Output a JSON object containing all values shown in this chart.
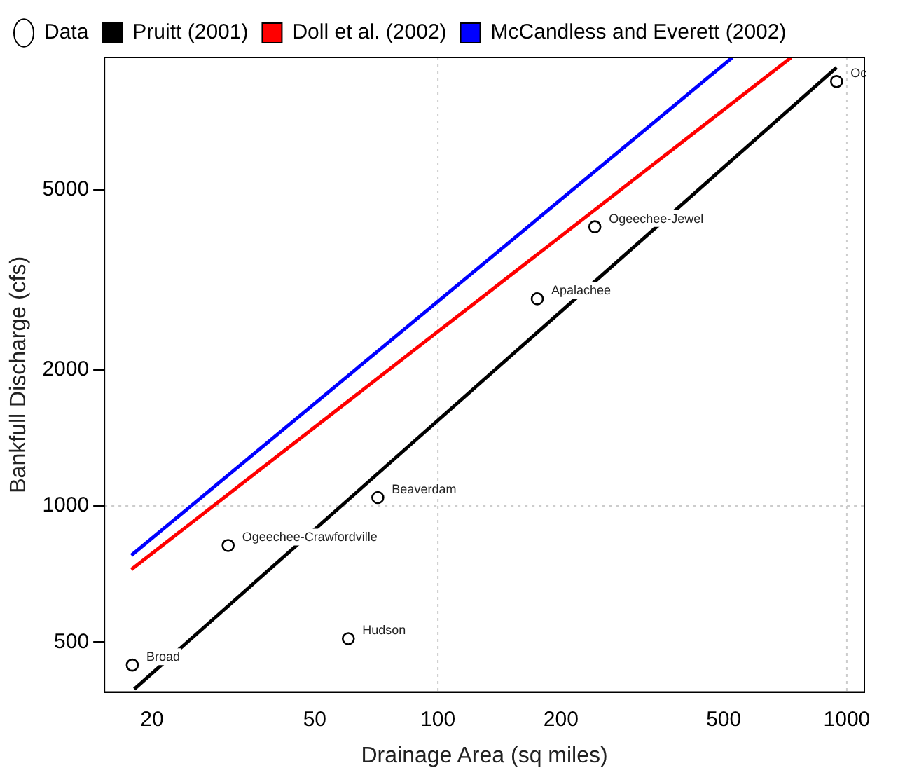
{
  "chart_data": {
    "type": "scatter",
    "xlabel": "Drainage Area (sq miles)",
    "ylabel": "Bankfull Discharge (cfs)",
    "log": "xy",
    "xlim": [
      15.3,
      1104
    ],
    "ylim": [
      388,
      9800
    ],
    "xticks": [
      20,
      50,
      100,
      200,
      500,
      1000
    ],
    "yticks": [
      500,
      1000,
      2000,
      5000
    ],
    "legend": "top left",
    "grid": false,
    "series": [
      {
        "name": "Data",
        "marker": "circle",
        "color": "#000000",
        "x": [
          17.9,
          30.7,
          60.4,
          71.3,
          175,
          242,
          944
        ],
        "values": [
          445,
          818,
          509,
          1044,
          2870,
          4140,
          8670
        ]
      },
      {
        "name": "Pruitt (2001)",
        "type": "line",
        "color": "#000000",
        "x": [
          18.1,
          944
        ],
        "values": [
          394,
          9310
        ]
      },
      {
        "name": "Doll et al. (2002)",
        "type": "line",
        "color": "#ff0000",
        "x": [
          17.8,
          731
        ],
        "values": [
          724,
          9800
        ]
      },
      {
        "name": "McCandless and Everett (2002)",
        "type": "line",
        "color": "#0000ff",
        "x": [
          17.8,
          525
        ],
        "values": [
          778,
          9800
        ]
      }
    ],
    "ref_lines": [
      {
        "axis": "x",
        "value": 100,
        "color": "#cccccc",
        "line_style": "dotted"
      },
      {
        "axis": "x",
        "value": 1000,
        "color": "#cccccc",
        "line_style": "dotted"
      },
      {
        "axis": "y",
        "value": 1000,
        "color": "#cccccc",
        "line_style": "dotted"
      }
    ],
    "annotations": [
      {
        "text": "Broad",
        "x": 17.9,
        "y": 445
      },
      {
        "text": "Ogeechee-Crawfordville",
        "x": 30.7,
        "y": 818
      },
      {
        "text": "Hudson",
        "x": 60.4,
        "y": 509
      },
      {
        "text": "Beaverdam",
        "x": 71.3,
        "y": 1044
      },
      {
        "text": "Apalachee",
        "x": 175,
        "y": 2870
      },
      {
        "text": "Ogeechee-Jewel",
        "x": 242,
        "y": 4140
      },
      {
        "text": "Oc",
        "x": 944,
        "y": 8670
      }
    ]
  }
}
